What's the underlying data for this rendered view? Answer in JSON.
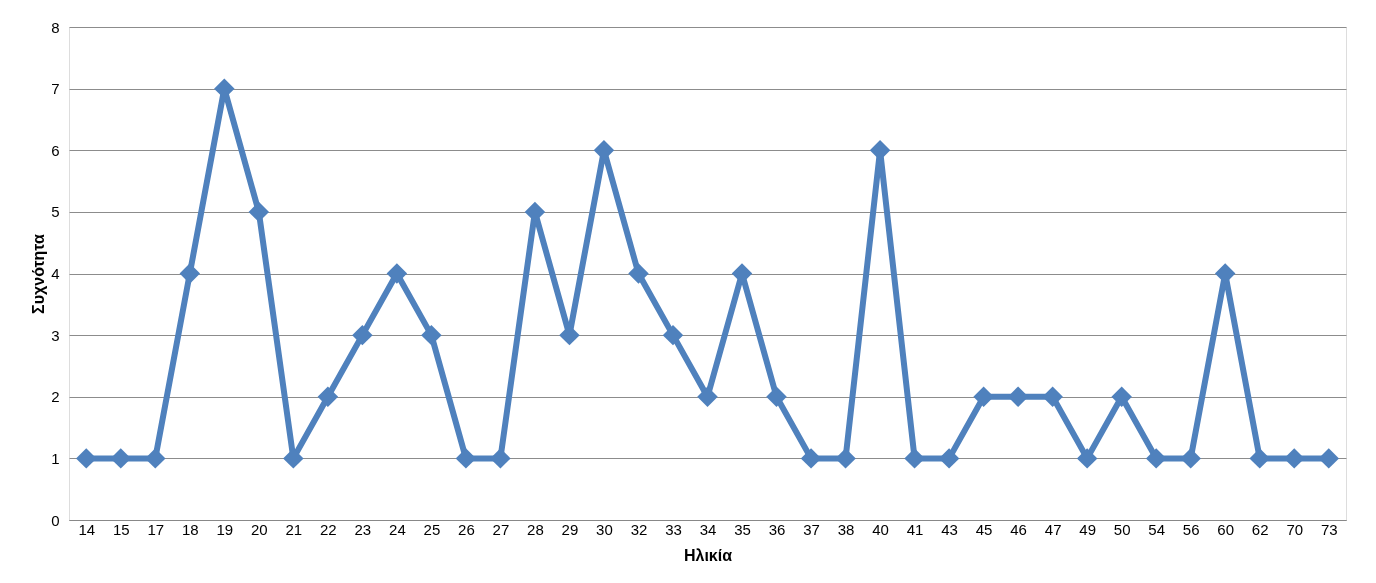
{
  "chart_data": {
    "type": "line",
    "xlabel": "Ηλικία",
    "ylabel": "Συχνότητα",
    "categories": [
      "14",
      "15",
      "17",
      "18",
      "19",
      "20",
      "21",
      "22",
      "23",
      "24",
      "25",
      "26",
      "27",
      "28",
      "29",
      "30",
      "32",
      "33",
      "34",
      "35",
      "36",
      "37",
      "38",
      "40",
      "41",
      "43",
      "45",
      "46",
      "47",
      "49",
      "50",
      "54",
      "56",
      "60",
      "62",
      "70",
      "73"
    ],
    "series": [
      {
        "color": "#4f81bd",
        "values": [
          1,
          1,
          1,
          4,
          7,
          5,
          1,
          2,
          3,
          4,
          3,
          1,
          1,
          5,
          3,
          6,
          4,
          3,
          2,
          4,
          2,
          1,
          1,
          6,
          1,
          1,
          2,
          2,
          2,
          1,
          2,
          1,
          1,
          4,
          1,
          1,
          1
        ]
      }
    ],
    "ylim": [
      0,
      8
    ],
    "yticks": [
      0,
      1,
      2,
      3,
      4,
      5,
      6,
      7,
      8
    ],
    "grid": "y",
    "marker": "diamond",
    "line_style": "solid"
  }
}
